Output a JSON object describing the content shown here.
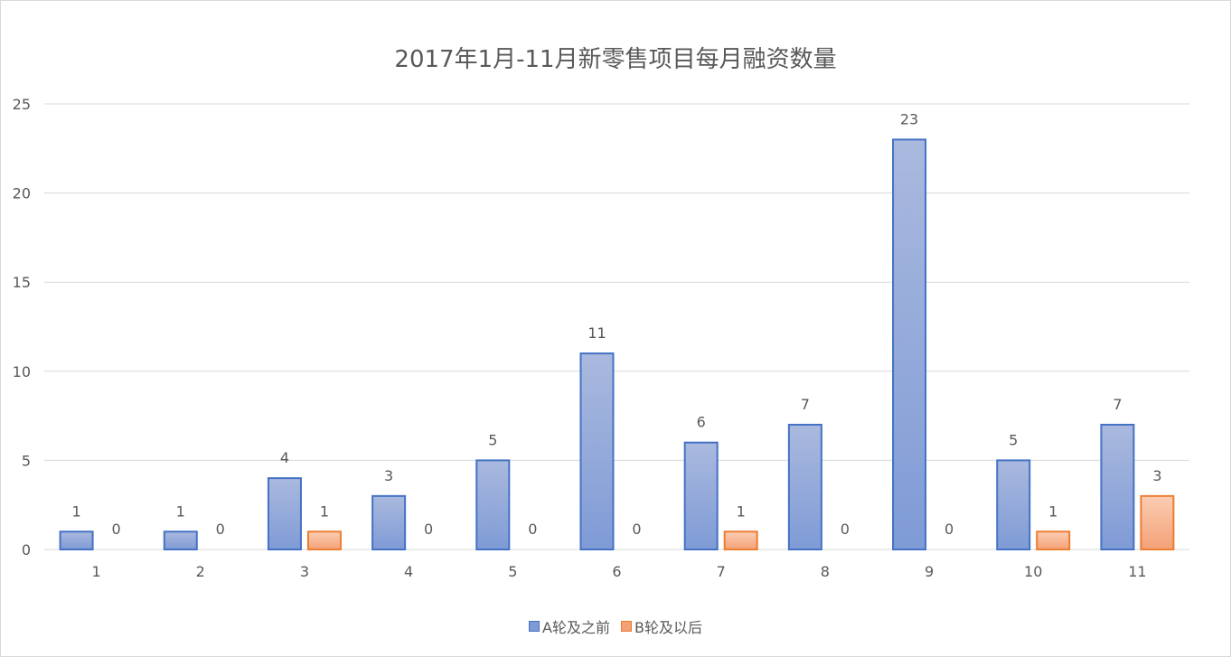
{
  "chart_data": {
    "type": "bar",
    "title": "2017年1月-11月新零售项目每月融资数量",
    "categories": [
      "1",
      "2",
      "3",
      "4",
      "5",
      "6",
      "7",
      "8",
      "9",
      "10",
      "11"
    ],
    "series": [
      {
        "name": "A轮及之前",
        "values": [
          1,
          1,
          4,
          3,
          5,
          11,
          6,
          7,
          23,
          5,
          7
        ],
        "color": "#4472c4",
        "fill_top": "#aab9de",
        "fill_bottom": "#7f9bd6"
      },
      {
        "name": "B轮及以后",
        "values": [
          0,
          0,
          1,
          0,
          0,
          0,
          1,
          0,
          0,
          1,
          3
        ],
        "color": "#ed7d31",
        "fill_top": "#fbcdb4",
        "fill_bottom": "#f4a177"
      }
    ],
    "ylim": [
      0,
      25
    ],
    "yticks": [
      "0",
      "5",
      "10",
      "15",
      "20",
      "25"
    ],
    "grid": true,
    "legend_position": "bottom",
    "data_labels": true
  }
}
